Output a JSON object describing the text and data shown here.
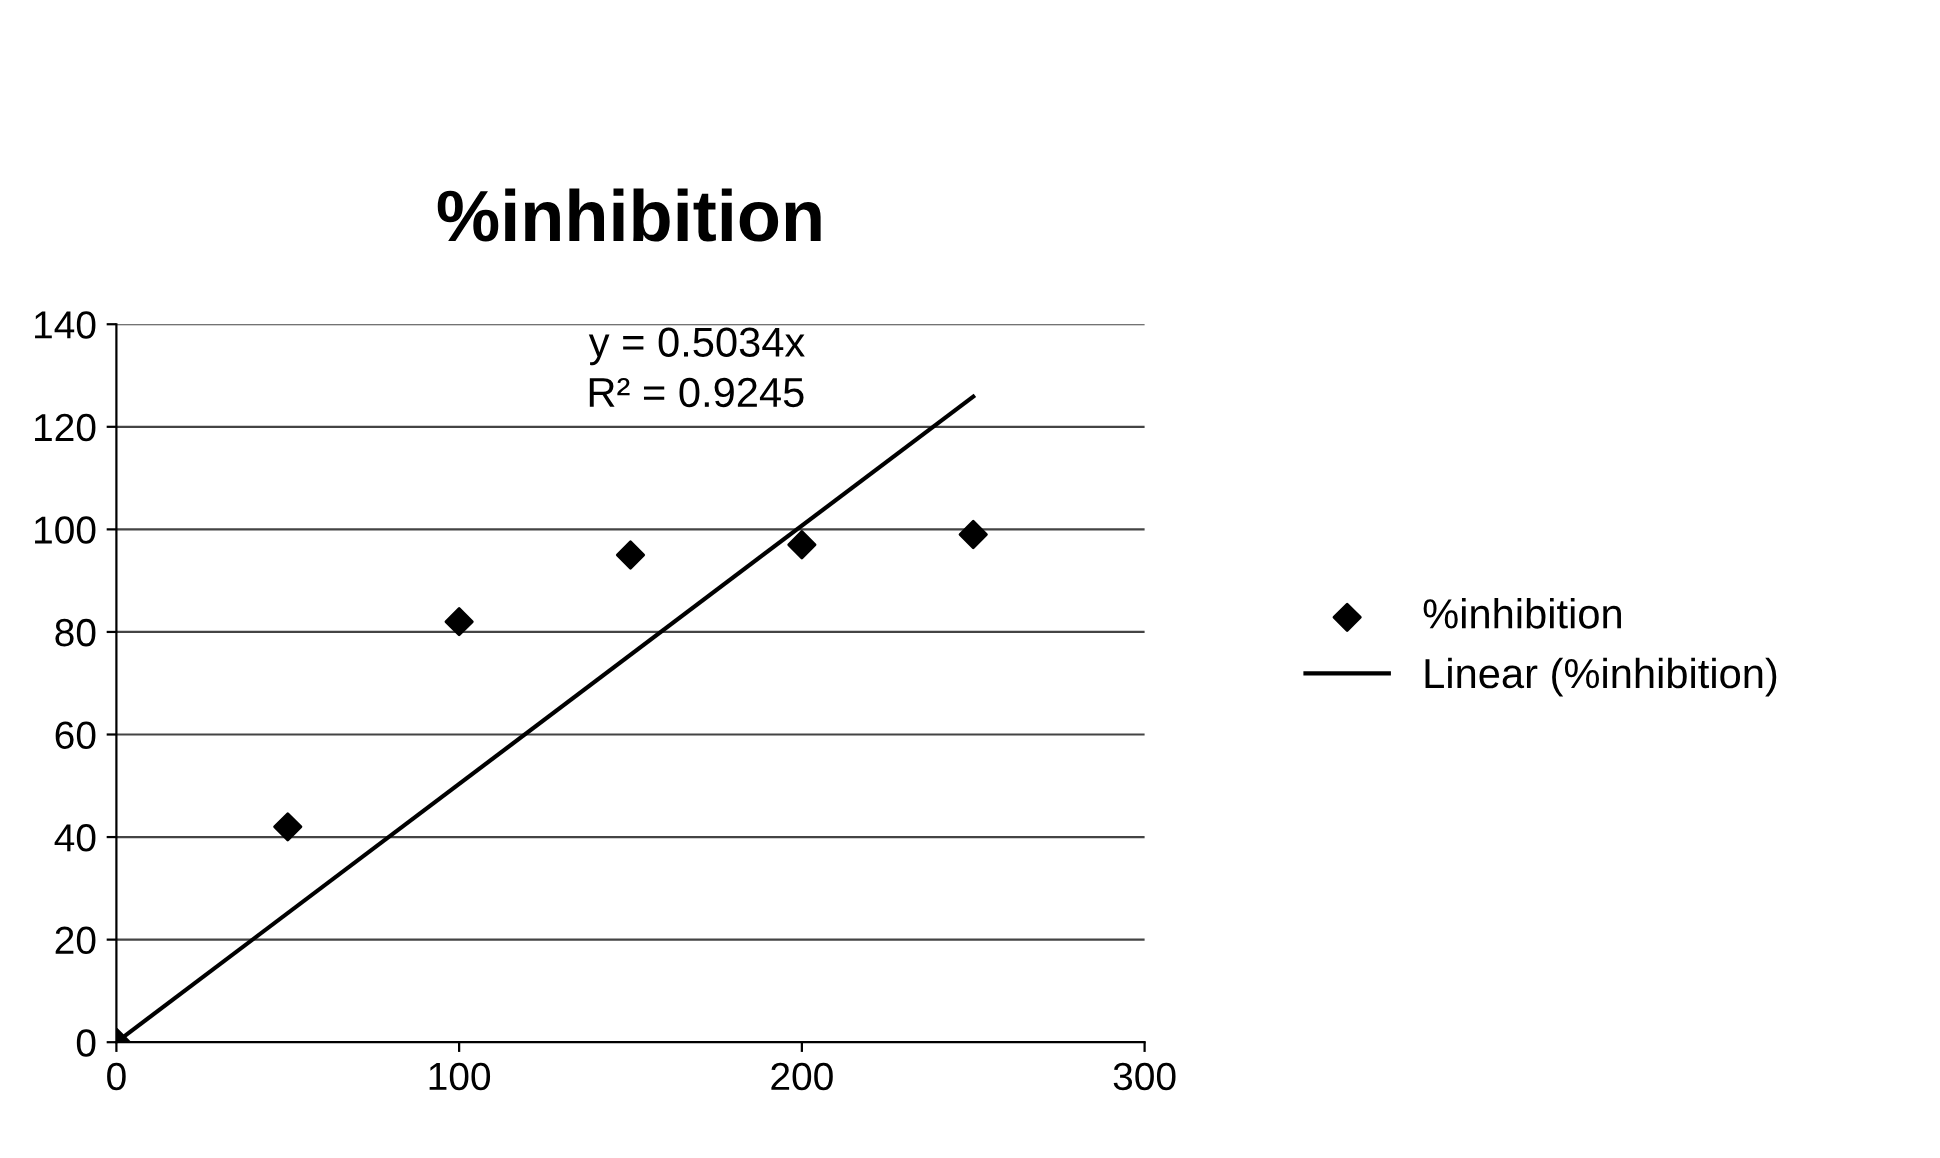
{
  "chart_data": {
    "type": "scatter",
    "title": "%inhibition",
    "x": [
      0,
      50,
      100,
      150,
      200,
      250
    ],
    "series": [
      {
        "name": "%inhibition",
        "color": "#000000",
        "marker": "diamond",
        "values": [
          0,
          42,
          82,
          95,
          97,
          99
        ]
      },
      {
        "name": "Linear (%inhibition)",
        "color": "#000000",
        "type": "line",
        "marker": "none",
        "line_style": "solid",
        "x": [
          0,
          250
        ],
        "values": [
          0,
          125.9
        ]
      }
    ],
    "xlim": [
      0,
      300
    ],
    "xticks": [
      0,
      100,
      200,
      300
    ],
    "ylim": [
      0,
      140
    ],
    "yticks": [
      0,
      20,
      40,
      60,
      80,
      100,
      120,
      140
    ],
    "grid": "y",
    "legend": "right",
    "annotations": [
      "y = 0.5034x",
      "R² = 0.9245"
    ]
  }
}
